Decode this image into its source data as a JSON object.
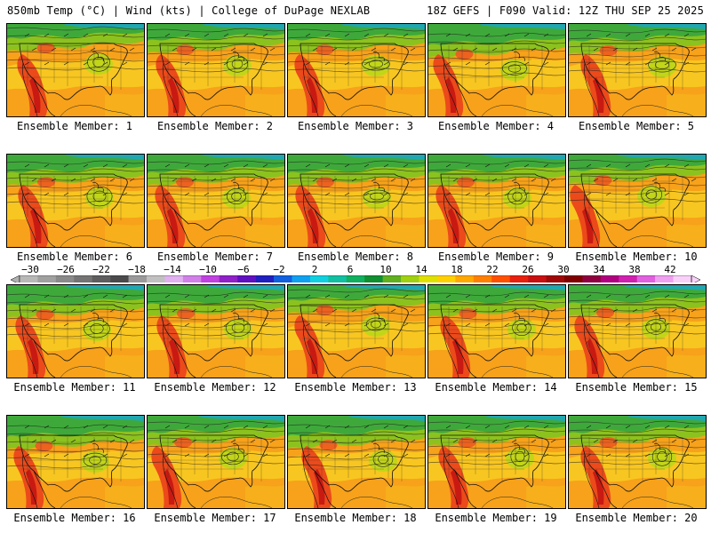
{
  "header": {
    "left": "850mb Temp (°C) | Wind (kts) | College of DuPage NEXLAB",
    "right": "18Z GEFS | F090 Valid: 12Z THU SEP 25 2025"
  },
  "panels": [
    {
      "label": "Ensemble Member: 1"
    },
    {
      "label": "Ensemble Member: 2"
    },
    {
      "label": "Ensemble Member: 3"
    },
    {
      "label": "Ensemble Member: 4"
    },
    {
      "label": "Ensemble Member: 5"
    },
    {
      "label": "Ensemble Member: 6"
    },
    {
      "label": "Ensemble Member: 7"
    },
    {
      "label": "Ensemble Member: 8"
    },
    {
      "label": "Ensemble Member: 9"
    },
    {
      "label": "Ensemble Member: 10"
    },
    {
      "label": "Ensemble Member: 11"
    },
    {
      "label": "Ensemble Member: 12"
    },
    {
      "label": "Ensemble Member: 13"
    },
    {
      "label": "Ensemble Member: 14"
    },
    {
      "label": "Ensemble Member: 15"
    },
    {
      "label": "Ensemble Member: 16"
    },
    {
      "label": "Ensemble Member: 17"
    },
    {
      "label": "Ensemble Member: 18"
    },
    {
      "label": "Ensemble Member: 19"
    },
    {
      "label": "Ensemble Member: 20"
    }
  ],
  "colorbar": {
    "labels": [
      "-30",
      "-26",
      "-22",
      "-18",
      "-14",
      "-10",
      "-6",
      "-2",
      "2",
      "6",
      "10",
      "14",
      "18",
      "22",
      "26",
      "30",
      "34",
      "38",
      "42"
    ],
    "colors": [
      "#b8b8b8",
      "#a0a0a0",
      "#8a8a8a",
      "#747474",
      "#5e5e5e",
      "#4a4a4a",
      "#9a9a9a",
      "#c0c0c0",
      "#e0b0f0",
      "#d080e8",
      "#c040e0",
      "#9020c8",
      "#6010c0",
      "#2020c0",
      "#1060e0",
      "#10a0f0",
      "#10d0e0",
      "#10c0a0",
      "#10b060",
      "#109030",
      "#60b020",
      "#a0d010",
      "#e0e000",
      "#ffd000",
      "#ffa800",
      "#ff8000",
      "#ff5000",
      "#e82010",
      "#c81010",
      "#a00808",
      "#800000",
      "#900040",
      "#b00080",
      "#d020b0",
      "#e060e0",
      "#f0a0f0",
      "#f8d0f8"
    ]
  }
}
